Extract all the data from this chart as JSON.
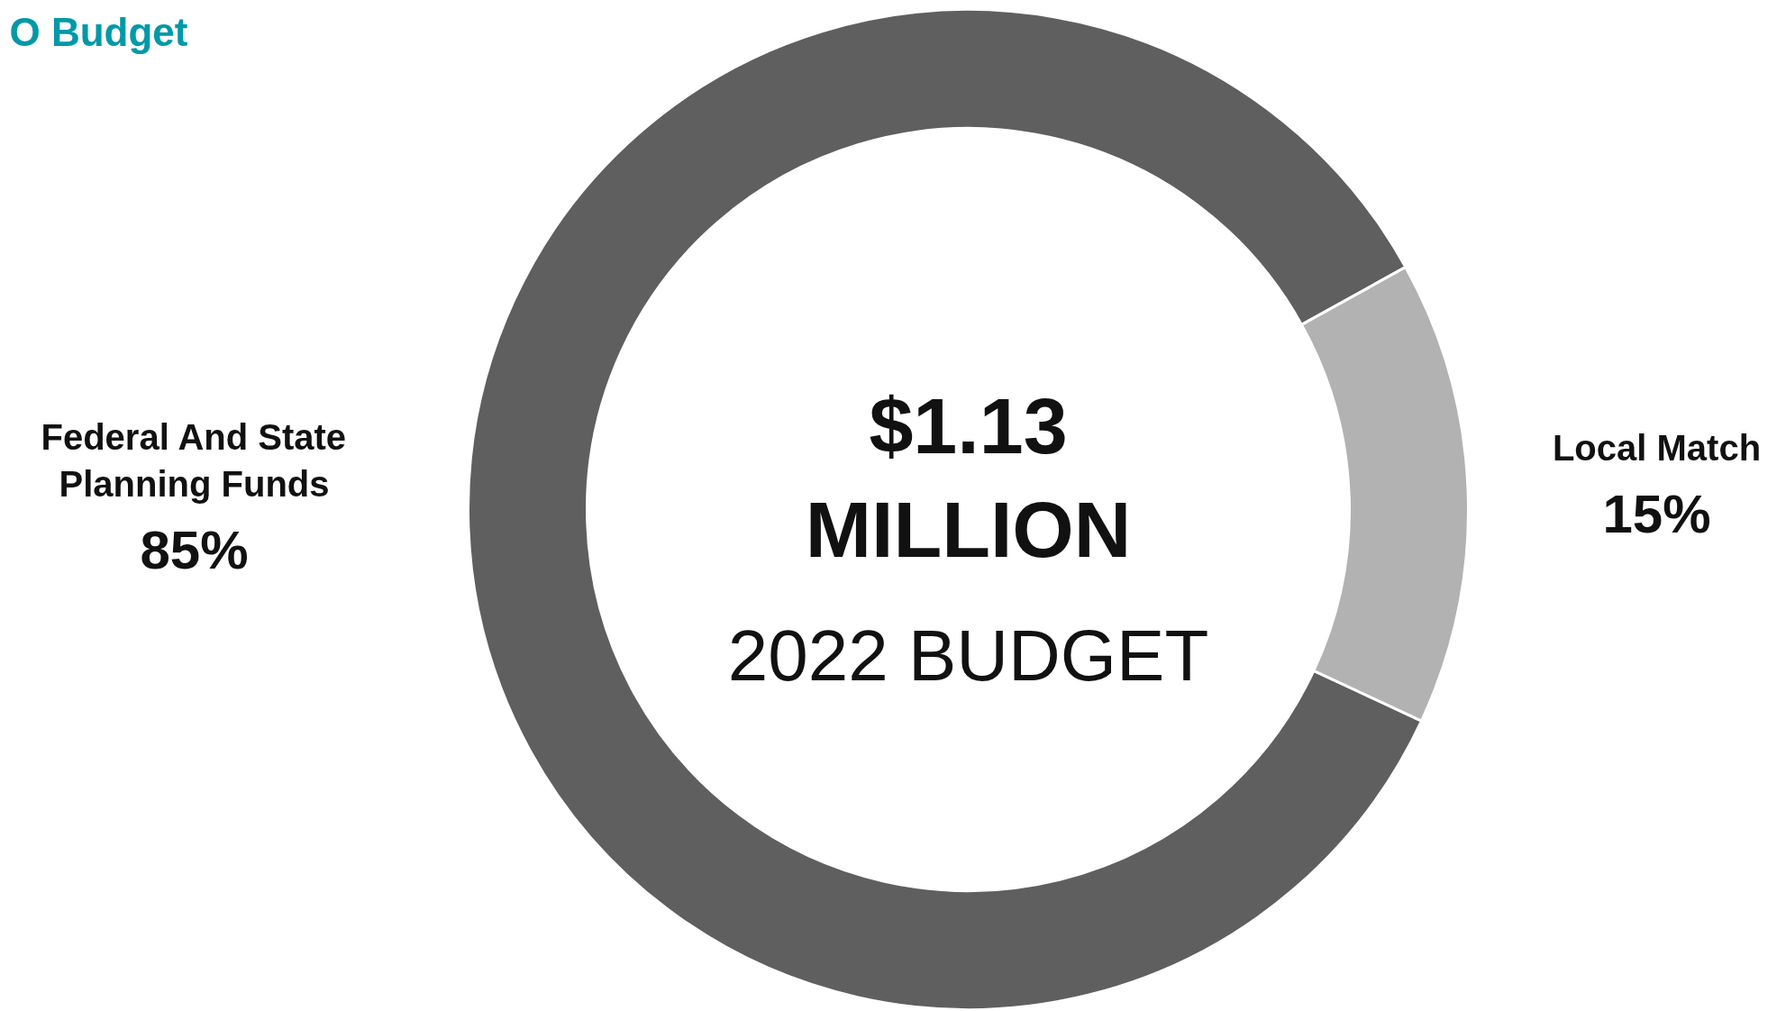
{
  "chart_data": {
    "type": "donut",
    "title": "O Budget",
    "categories": [
      "Federal And State Planning Funds",
      "Local Match"
    ],
    "values": [
      85,
      15
    ],
    "colors": [
      "#5f5f5f",
      "#b2b2b2"
    ],
    "value_labels": [
      "85%",
      "15%"
    ],
    "annotations": [
      "$1.13",
      "MILLION",
      "2022 BUDGET"
    ]
  }
}
